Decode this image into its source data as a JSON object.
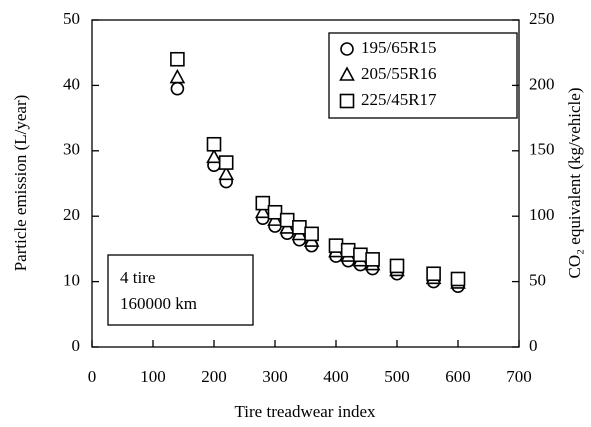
{
  "chart_data": {
    "type": "scatter",
    "xlabel": "Tire treadwear index",
    "ylabel": "Particle emission (L/year)",
    "y2label": "CO₂ equivalent (kg/vehicle)",
    "x": [
      140,
      200,
      220,
      280,
      300,
      320,
      340,
      360,
      400,
      420,
      440,
      460,
      500,
      560,
      600
    ],
    "series": [
      {
        "name": "195/65R15",
        "color": "#000000",
        "marker": "circle",
        "values": [
          39.5,
          27.8,
          25.3,
          19.7,
          18.5,
          17.4,
          16.4,
          15.5,
          13.9,
          13.2,
          12.6,
          12.0,
          11.2,
          10.0,
          9.3
        ]
      },
      {
        "name": "205/55R16",
        "color": "#000000",
        "marker": "triangle",
        "values": [
          41.2,
          29.0,
          26.4,
          20.6,
          19.4,
          18.2,
          17.2,
          16.2,
          14.6,
          13.9,
          13.2,
          12.6,
          11.7,
          10.5,
          9.8
        ]
      },
      {
        "name": "225/45R17",
        "color": "#000000",
        "marker": "square",
        "values": [
          44.0,
          31.0,
          28.2,
          22.0,
          20.6,
          19.4,
          18.3,
          17.3,
          15.5,
          14.8,
          14.1,
          13.4,
          12.4,
          11.2,
          10.4
        ]
      }
    ],
    "xlim": [
      0,
      700
    ],
    "xticks": [
      0,
      100,
      200,
      300,
      400,
      500,
      600,
      700
    ],
    "ylim": [
      0,
      50
    ],
    "yticks": [
      0,
      10,
      20,
      30,
      40,
      50
    ],
    "y2lim": [
      0,
      250
    ],
    "y2ticks": [
      0,
      50,
      100,
      150,
      200,
      250
    ],
    "legend": "upper right",
    "annotation": [
      "4 tire",
      "160000 km"
    ]
  }
}
